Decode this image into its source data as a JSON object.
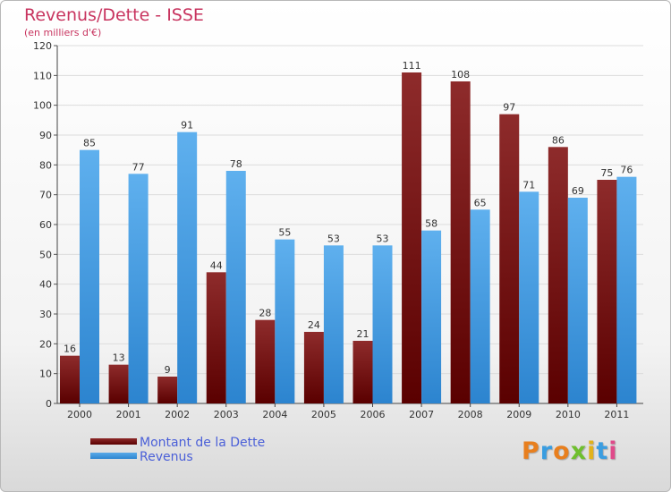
{
  "chart_data": {
    "type": "bar",
    "title": "Revenus/Dette - ISSE",
    "subtitle": "(en milliers d'€)",
    "categories": [
      "2000",
      "2001",
      "2002",
      "2003",
      "2004",
      "2005",
      "2006",
      "2007",
      "2008",
      "2009",
      "2010",
      "2011"
    ],
    "series": [
      {
        "name": "Montant de la Dette",
        "color": "#7a1a1a",
        "values": [
          16,
          13,
          9,
          44,
          28,
          24,
          21,
          111,
          108,
          97,
          86,
          75
        ]
      },
      {
        "name": "Revenus",
        "color": "#4da3e6",
        "values": [
          85,
          77,
          91,
          78,
          55,
          53,
          53,
          58,
          65,
          71,
          69,
          76
        ]
      }
    ],
    "ylim": [
      0,
      120
    ],
    "yticks": [
      0,
      10,
      20,
      30,
      40,
      50,
      60,
      70,
      80,
      90,
      100,
      110,
      120
    ],
    "grid": true,
    "legend_position": "bottom-left",
    "xlabel": "",
    "ylabel": ""
  },
  "branding": {
    "logo_text": "Proxiti",
    "logo_colors": [
      "#e87f1e",
      "#3a9de0",
      "#e87f1e",
      "#6fbf2e",
      "#e2b21a",
      "#3a9de0",
      "#e04a8a"
    ]
  }
}
